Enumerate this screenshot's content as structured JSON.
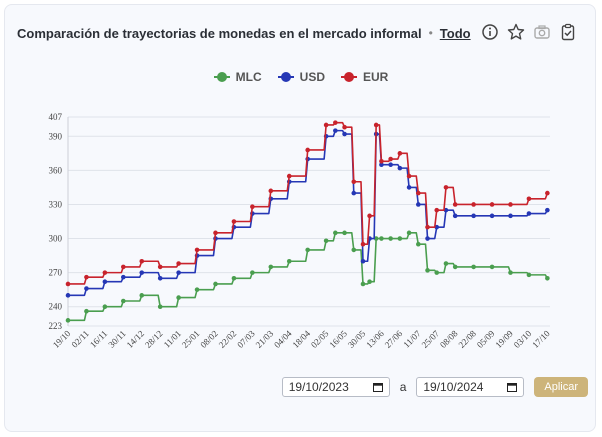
{
  "header": {
    "title": "Comparación de trayectorias de monedas en el mercado informal",
    "separator": "•",
    "filter_link": "Todo",
    "icons": [
      "info-icon",
      "star-icon",
      "camera-icon",
      "clipboard-icon"
    ]
  },
  "controls": {
    "start_date": "19/10/2023",
    "conjunction": "a",
    "end_date": "19/10/2024",
    "apply_label": "Aplicar"
  },
  "colors": {
    "accent": "#cdb47a"
  },
  "chart_data": {
    "type": "line",
    "title": "",
    "xlabel": "",
    "ylabel": "",
    "ylim": [
      223,
      407
    ],
    "y_ticks": [
      223,
      240,
      270,
      300,
      330,
      360,
      390,
      407
    ],
    "grid": "horizontal",
    "legend_position": "top-center",
    "x_ticks": [
      "19/10",
      "02/11",
      "16/11",
      "30/11",
      "14/12",
      "28/12",
      "11/01",
      "25/01",
      "08/02",
      "22/02",
      "07/03",
      "21/03",
      "04/04",
      "18/04",
      "02/05",
      "16/05",
      "30/05",
      "13/06",
      "27/06",
      "11/07",
      "25/07",
      "08/08",
      "22/08",
      "05/09",
      "19/09",
      "03/10",
      "17/10"
    ],
    "x": [
      "2023-10-19",
      "2023-11-02",
      "2023-11-16",
      "2023-11-30",
      "2023-12-14",
      "2023-12-28",
      "2024-01-11",
      "2024-01-25",
      "2024-02-08",
      "2024-02-22",
      "2024-03-07",
      "2024-03-21",
      "2024-04-04",
      "2024-04-18",
      "2024-05-02",
      "2024-05-09",
      "2024-05-16",
      "2024-05-23",
      "2024-05-30",
      "2024-06-04",
      "2024-06-09",
      "2024-06-13",
      "2024-06-20",
      "2024-06-27",
      "2024-07-04",
      "2024-07-11",
      "2024-07-18",
      "2024-07-25",
      "2024-08-01",
      "2024-08-08",
      "2024-08-22",
      "2024-09-05",
      "2024-09-19",
      "2024-10-03",
      "2024-10-17"
    ],
    "series": [
      {
        "name": "MLC",
        "color": "#4a9e4f",
        "values": [
          228,
          236,
          240,
          245,
          250,
          240,
          248,
          255,
          260,
          265,
          270,
          275,
          280,
          290,
          298,
          305,
          305,
          290,
          260,
          262,
          300,
          300,
          300,
          300,
          305,
          295,
          272,
          270,
          278,
          275,
          275,
          275,
          270,
          268,
          265
        ]
      },
      {
        "name": "USD",
        "color": "#2537b5",
        "values": [
          250,
          256,
          262,
          266,
          270,
          265,
          270,
          285,
          300,
          310,
          322,
          335,
          350,
          370,
          390,
          395,
          392,
          340,
          280,
          300,
          392,
          365,
          365,
          362,
          345,
          330,
          300,
          310,
          325,
          320,
          320,
          320,
          320,
          322,
          325
        ]
      },
      {
        "name": "EUR",
        "color": "#c8232c",
        "values": [
          260,
          266,
          270,
          275,
          280,
          275,
          278,
          290,
          305,
          315,
          328,
          342,
          355,
          378,
          400,
          402,
          398,
          350,
          295,
          320,
          400,
          368,
          370,
          375,
          355,
          340,
          310,
          325,
          345,
          330,
          330,
          330,
          330,
          335,
          340
        ]
      }
    ]
  }
}
